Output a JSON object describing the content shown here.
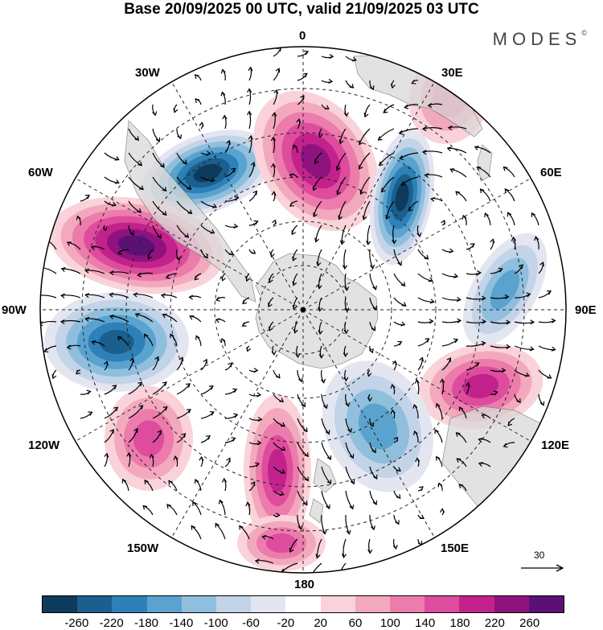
{
  "title": "Base 20/09/2025 00 UTC, valid 21/09/2025 03 UTC",
  "brand": "MODES",
  "brand_mark": "©",
  "longitude_labels": [
    "0",
    "30E",
    "60E",
    "90E",
    "120E",
    "150E",
    "180",
    "150W",
    "120W",
    "90W",
    "60W",
    "30W"
  ],
  "reference_vector": {
    "value": "30"
  },
  "colorbar": {
    "colors": [
      "#0d3b5c",
      "#1a5f8e",
      "#2e81b8",
      "#5aa3cf",
      "#8fbfdd",
      "#c3d3e8",
      "#e3e5f1",
      "#ffffff",
      "#f9d3d9",
      "#f3a9bd",
      "#ec7cac",
      "#de4c9d",
      "#c3228c",
      "#8e137e",
      "#5b1173"
    ],
    "tick_labels": [
      "-260",
      "-220",
      "-180",
      "-140",
      "-100",
      "-60",
      "-20",
      "20",
      "60",
      "100",
      "140",
      "180",
      "220",
      "260"
    ]
  },
  "anomalies": [
    {
      "name": "low-atlantic-south",
      "sign": -1,
      "intensity": 0.95
    },
    {
      "name": "high-south-atlantic",
      "sign": 1,
      "intensity": 0.85
    },
    {
      "name": "low-indian-west",
      "sign": -1,
      "intensity": 0.95
    },
    {
      "name": "high-south-america",
      "sign": 1,
      "intensity": 1.0
    },
    {
      "name": "low-southeast-pacific",
      "sign": -1,
      "intensity": 0.85
    },
    {
      "name": "low-indian-east",
      "sign": -1,
      "intensity": 0.5
    },
    {
      "name": "high-south-indian",
      "sign": 1,
      "intensity": 0.65
    },
    {
      "name": "high-south-pacific-east",
      "sign": 1,
      "intensity": 0.5
    },
    {
      "name": "high-ross-sea",
      "sign": 1,
      "intensity": 0.6
    },
    {
      "name": "high-dateline",
      "sign": 1,
      "intensity": 0.55
    },
    {
      "name": "low-southwest-pacific",
      "sign": -1,
      "intensity": 0.45
    },
    {
      "name": "high-south-indian-ridge",
      "sign": 1,
      "intensity": 0.35
    }
  ]
}
